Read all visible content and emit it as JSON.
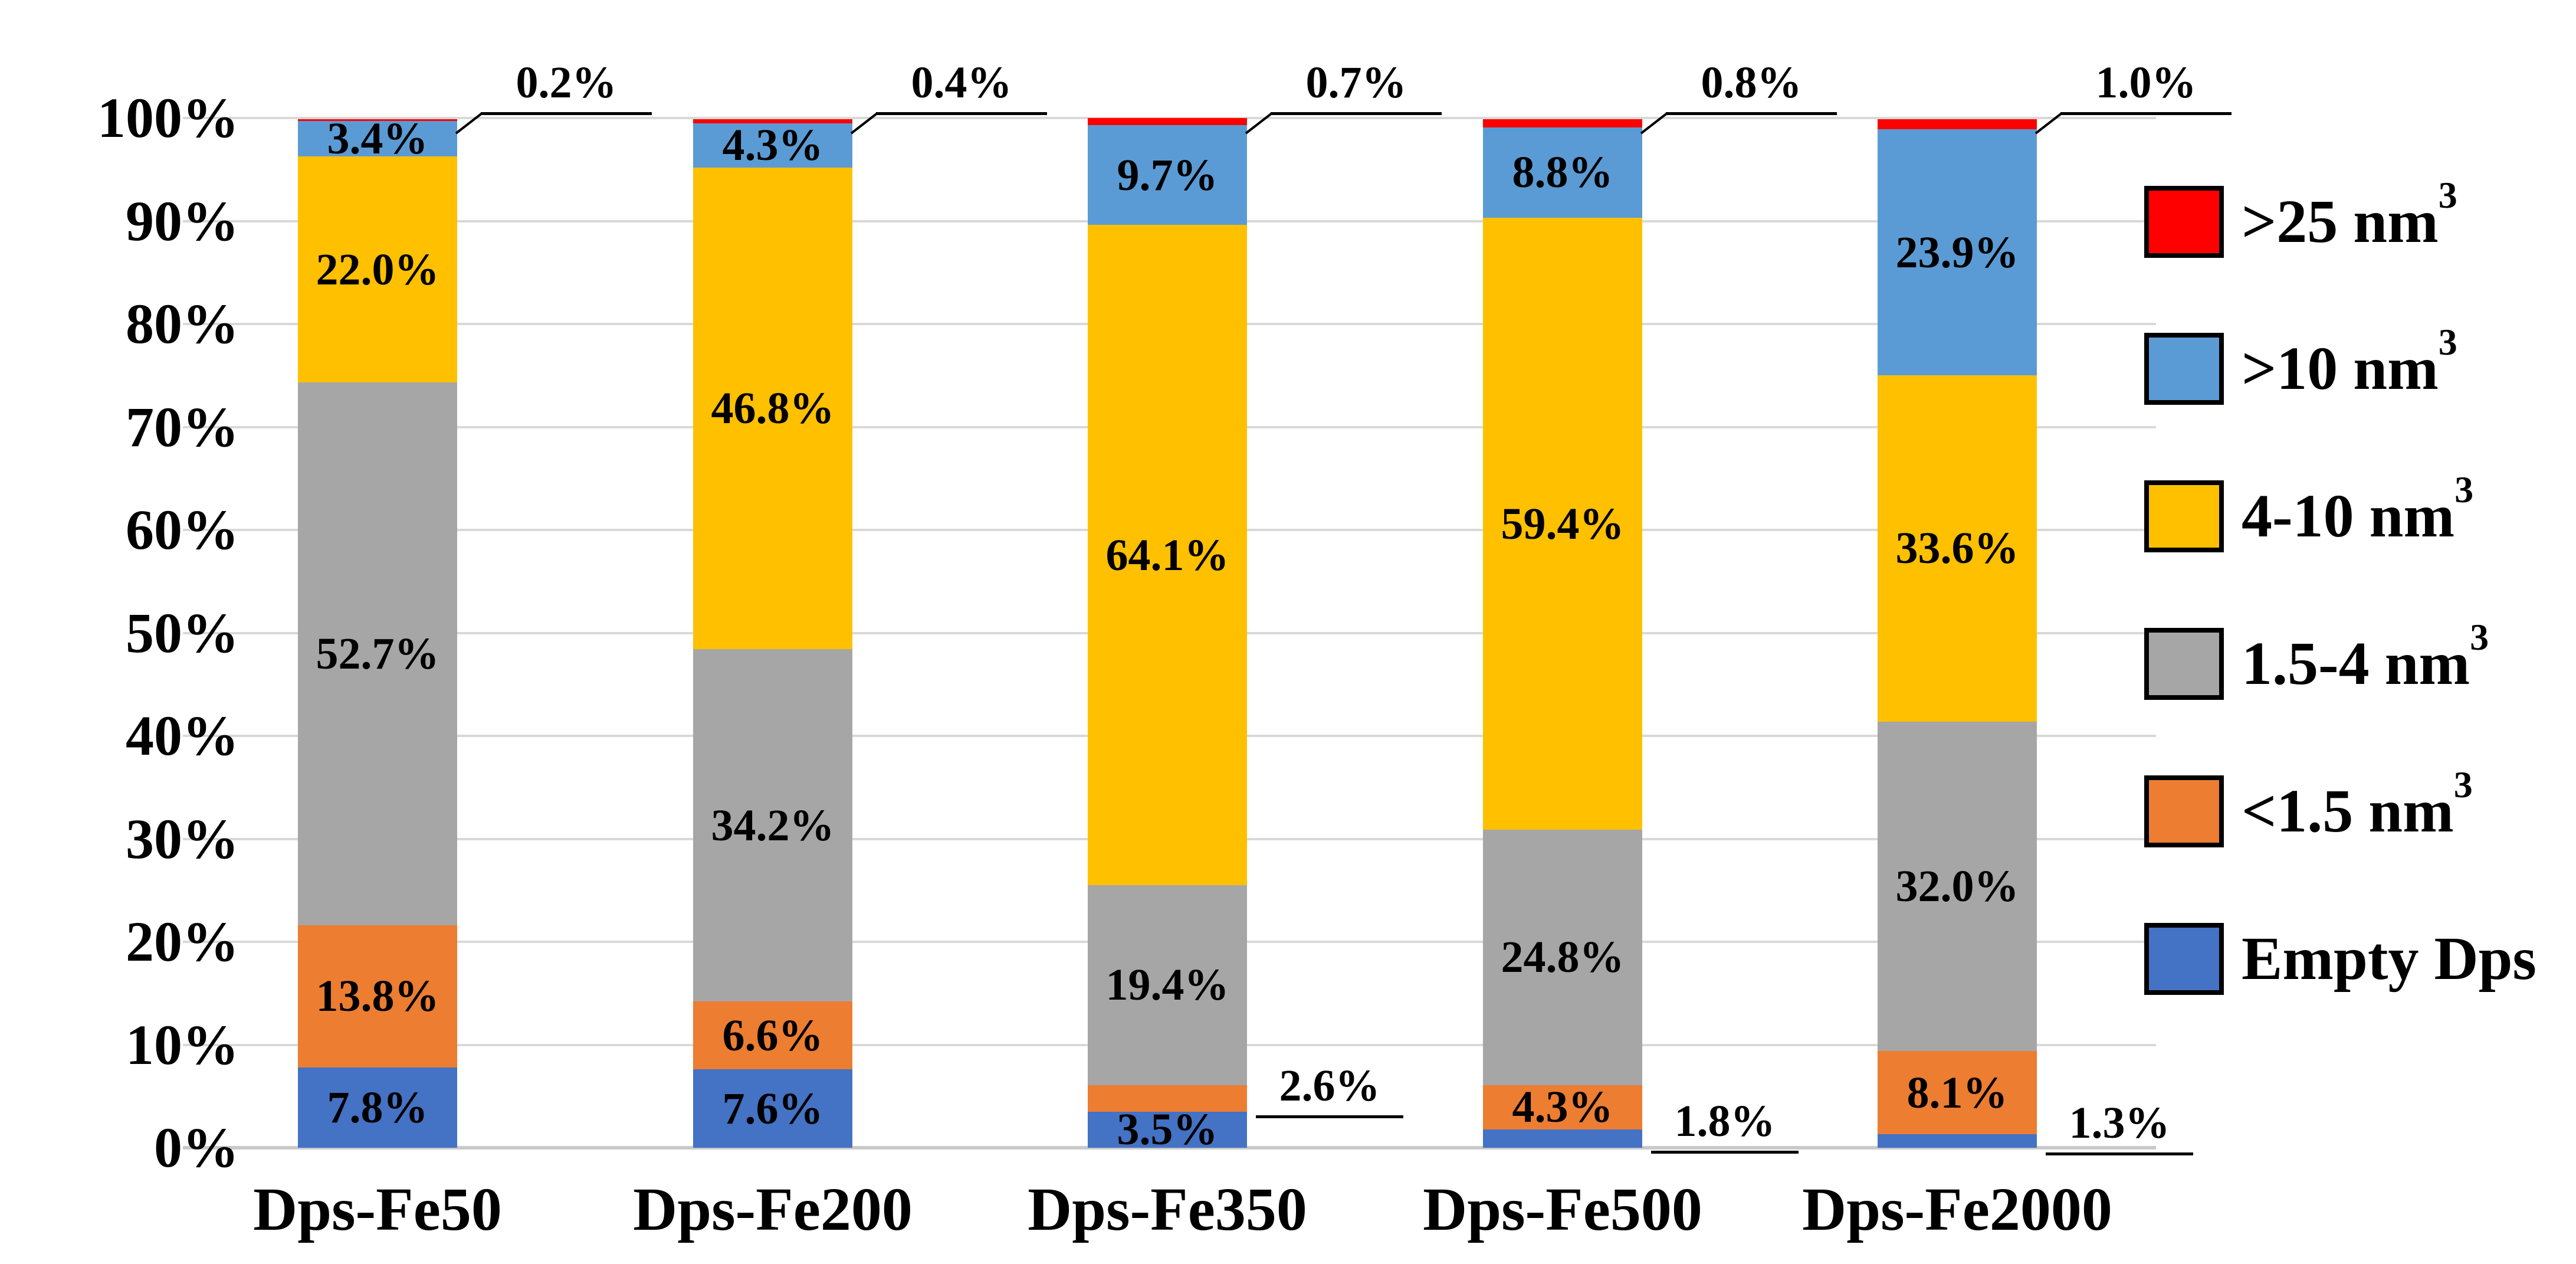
{
  "figure": {
    "background": "#FFFFFF"
  },
  "chart_data": {
    "type": "bar",
    "subtype": "stacked-percentage",
    "title": "",
    "xlabel": "",
    "ylabel": "",
    "categories": [
      "Dps-Fe50",
      "Dps-Fe200",
      "Dps-Fe350",
      "Dps-Fe500",
      "Dps-Fe2000"
    ],
    "series_bottom_to_top": [
      {
        "name": "Empty Dps",
        "color": "#4472C4",
        "values": [
          7.8,
          7.6,
          3.5,
          1.8,
          1.3
        ],
        "value_labels": [
          "7.8%",
          "7.6%",
          "3.5%",
          "1.8%",
          "1.3%"
        ]
      },
      {
        "name": "<1.5 nm³",
        "color": "#ED7D31",
        "values": [
          13.8,
          6.6,
          2.6,
          4.3,
          8.1
        ],
        "value_labels": [
          "13.8%",
          "6.6%",
          "2.6%",
          "4.3%",
          "8.1%"
        ]
      },
      {
        "name": "1.5-4 nm³",
        "color": "#A6A6A6",
        "values": [
          52.7,
          34.2,
          19.4,
          24.8,
          32.0
        ],
        "value_labels": [
          "52.7%",
          "34.2%",
          "19.4%",
          "24.8%",
          "32.0%"
        ]
      },
      {
        "name": "4-10 nm³",
        "color": "#FFC000",
        "values": [
          22.0,
          46.8,
          64.1,
          59.4,
          33.6
        ],
        "value_labels": [
          "22.0%",
          "46.8%",
          "64.1%",
          "59.4%",
          "33.6%"
        ]
      },
      {
        "name": ">10 nm³",
        "color": "#5B9BD5",
        "values": [
          3.4,
          4.3,
          9.7,
          8.8,
          23.9
        ],
        "value_labels": [
          "3.4%",
          "4.3%",
          "9.7%",
          "8.8%",
          "23.9%"
        ]
      },
      {
        "name": ">25 nm³",
        "color": "#FF0000",
        "values": [
          0.2,
          0.4,
          0.7,
          0.8,
          1.0
        ],
        "value_labels": [
          "0.2%",
          "0.4%",
          "0.7%",
          "0.8%",
          "1.0%"
        ]
      }
    ],
    "y_axis": {
      "min": 0,
      "max": 100,
      "step": 10,
      "ticks_bottom_to_top": [
        "0%",
        "10%",
        "20%",
        "30%",
        "40%",
        "50%",
        "60%",
        "70%",
        "80%",
        "90%",
        "100%"
      ],
      "grid": true
    },
    "legend": {
      "position": "right",
      "items_top_to_bottom": [
        ">25 nm³",
        ">10 nm³",
        "4-10 nm³",
        "1.5-4 nm³",
        "<1.5 nm³",
        "Empty Dps"
      ]
    },
    "label_placement": {
      "inside_default": true,
      "top_callouts_series": ">25 nm³",
      "right_callouts": [
        {
          "category": "Dps-Fe350",
          "series": "<1.5 nm³"
        },
        {
          "category": "Dps-Fe500",
          "series": "Empty Dps"
        },
        {
          "category": "Dps-Fe2000",
          "series": "Empty Dps"
        }
      ]
    },
    "colors": {
      "gridline": "#D9D9D9",
      "baseline": "#C9C9C9",
      "text": "#000000",
      "leader_line": "#000000"
    }
  }
}
